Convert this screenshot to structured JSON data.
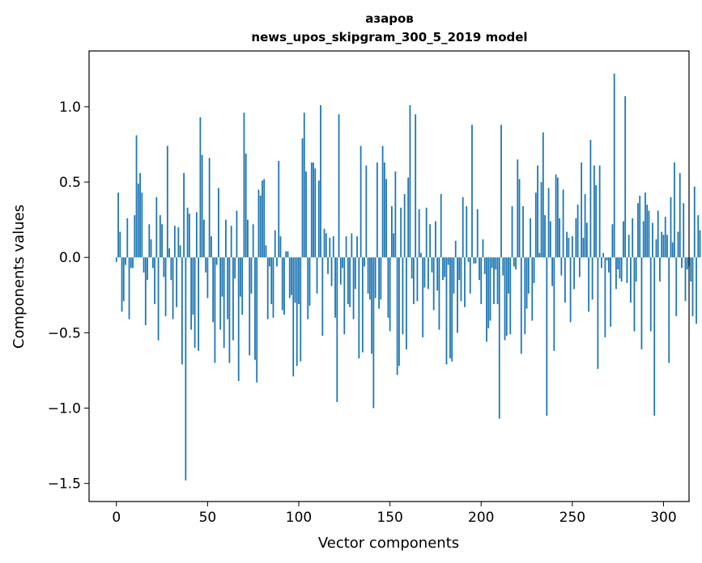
{
  "chart_data": {
    "type": "bar",
    "title": "азаров",
    "subtitle": "news_upos_skipgram_300_5_2019 model",
    "xlabel": "Vector components",
    "ylabel": "Components values",
    "xlim": [
      -15,
      314
    ],
    "ylim": [
      -1.62,
      1.37
    ],
    "xticks": [
      0,
      50,
      100,
      150,
      200,
      250,
      300
    ],
    "xtick_labels": [
      "0",
      "50",
      "100",
      "150",
      "200",
      "250",
      "300"
    ],
    "yticks": [
      -1.5,
      -1.0,
      -0.5,
      0.0,
      0.5,
      1.0
    ],
    "ytick_labels": [
      "−1.5",
      "−1.0",
      "−0.5",
      "0.0",
      "0.5",
      "1.0"
    ],
    "bar_color": "#1f77b4",
    "values": [
      -0.03,
      0.43,
      0.17,
      -0.36,
      -0.29,
      -0.05,
      0.26,
      -0.41,
      -0.07,
      -0.07,
      0.28,
      0.81,
      0.49,
      0.56,
      0.43,
      -0.1,
      -0.45,
      -0.15,
      0.22,
      0.12,
      -0.07,
      -0.31,
      0.4,
      -0.55,
      0.28,
      0.22,
      -0.13,
      -0.39,
      0.74,
      0.06,
      -0.15,
      -0.41,
      0.21,
      -0.33,
      0.2,
      0.08,
      -0.71,
      0.56,
      -1.48,
      0.33,
      0.29,
      -0.48,
      -0.38,
      -0.6,
      0.3,
      -0.62,
      0.93,
      0.68,
      0.25,
      -0.1,
      -0.27,
      0.66,
      0.14,
      -0.43,
      -0.7,
      -0.05,
      0.46,
      -0.48,
      -0.26,
      -0.6,
      0.25,
      -0.41,
      -0.7,
      0.21,
      -0.55,
      -0.14,
      0.31,
      -0.82,
      -0.26,
      -0.38,
      0.96,
      0.69,
      0.25,
      -0.65,
      -0.24,
      0.22,
      -0.68,
      -0.83,
      0.45,
      0.41,
      0.51,
      0.52,
      0.08,
      -0.41,
      -0.06,
      -0.31,
      -0.4,
      0.18,
      -0.06,
      0.64,
      0.14,
      -0.35,
      -0.38,
      0.04,
      0.04,
      -0.27,
      -0.25,
      -0.79,
      -0.3,
      -0.72,
      -0.31,
      -0.69,
      0.79,
      0.96,
      0.57,
      -0.41,
      -0.32,
      0.63,
      0.63,
      0.59,
      -0.24,
      0.51,
      1.01,
      -0.52,
      0.19,
      0.16,
      -0.11,
      0.13,
      -0.19,
      0.14,
      -0.4,
      -0.96,
      0.95,
      -0.18,
      -0.07,
      -0.51,
      0.14,
      -0.31,
      -0.33,
      0.16,
      -0.41,
      -0.21,
      0.14,
      -0.67,
      0.74,
      -0.63,
      -0.06,
      0.61,
      -0.24,
      -0.28,
      -0.64,
      -1.0,
      -0.27,
      0.63,
      -0.34,
      -0.28,
      0.74,
      0.63,
      0.52,
      -0.4,
      -0.49,
      0.34,
      0.16,
      0.57,
      -0.78,
      -0.72,
      0.33,
      -0.51,
      0.42,
      -0.61,
      0.53,
      1.01,
      -0.14,
      -0.31,
      0.95,
      -0.29,
      0.32,
      0.03,
      -0.53,
      -0.2,
      0.33,
      -0.21,
      0.22,
      -0.1,
      -0.35,
      0.24,
      -0.22,
      -0.48,
      0.42,
      -0.15,
      -0.13,
      -0.71,
      -0.05,
      -0.67,
      -0.69,
      -0.24,
      0.11,
      -0.5,
      -0.15,
      -0.29,
      0.4,
      -0.33,
      0.34,
      -0.03,
      -0.24,
      0.88,
      -0.04,
      -0.04,
      0.32,
      -0.15,
      -0.31,
      0.12,
      -0.11,
      -0.56,
      -0.47,
      -0.42,
      -0.07,
      -0.31,
      -0.08,
      -0.31,
      -1.07,
      0.88,
      -0.12,
      -0.55,
      -0.52,
      -0.24,
      -0.51,
      0.34,
      -0.06,
      -0.08,
      0.65,
      0.52,
      -0.64,
      0.34,
      -0.51,
      -0.34,
      -0.24,
      0.26,
      -0.42,
      -0.17,
      0.43,
      0.61,
      0.03,
      0.5,
      0.83,
      0.28,
      -1.05,
      0.46,
      0.24,
      -0.19,
      -0.62,
      0.55,
      0.53,
      0.26,
      -0.12,
      0.45,
      -0.3,
      0.17,
      0.13,
      -0.43,
      0.14,
      -0.21,
      0.26,
      0.35,
      -0.13,
      0.63,
      0.13,
      0.42,
      0.23,
      -0.36,
      0.78,
      -0.28,
      0.61,
      0.48,
      -0.74,
      0.61,
      -0.07,
      0.03,
      -0.53,
      -0.02,
      -0.1,
      -0.46,
      0.22,
      1.22,
      -0.21,
      -0.08,
      -0.14,
      -0.16,
      0.24,
      1.07,
      -0.17,
      0.15,
      -0.3,
      0.26,
      -0.49,
      -0.16,
      0.36,
      0.41,
      -0.61,
      0.24,
      0.43,
      0.35,
      0.31,
      -0.49,
      0.23,
      -1.05,
      0.12,
      0.31,
      -0.16,
      0.17,
      0.15,
      0.27,
      0.15,
      -0.7,
      0.4,
      0.1,
      0.63,
      -0.39,
      0.17,
      0.56,
      -0.07,
      0.36,
      -0.29,
      -0.08,
      -0.06,
      -0.16,
      -0.39,
      0.47,
      -0.44,
      0.28,
      0.18
    ]
  }
}
